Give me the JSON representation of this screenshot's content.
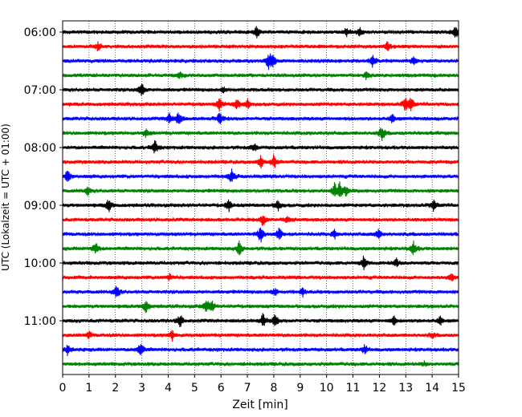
{
  "chart_data": {
    "type": "line",
    "title": "",
    "xlabel": "Zeit  [min]",
    "ylabel": "UTC (Lokalzeit = UTC + 01:00)",
    "xlim": [
      0,
      15
    ],
    "x_ticks": [
      "0",
      "1",
      "2",
      "3",
      "4",
      "5",
      "6",
      "7",
      "8",
      "9",
      "10",
      "11",
      "12",
      "13",
      "14",
      "15"
    ],
    "y_ticks": [
      "06:00",
      "07:00",
      "08:00",
      "09:00",
      "10:00",
      "11:00"
    ],
    "y_tick_rows": [
      0,
      4,
      8,
      12,
      16,
      20
    ],
    "row_interval_minutes": 15,
    "row_count": 24,
    "color_cycle": [
      "#000000",
      "#ff0000",
      "#0000ff",
      "#008000"
    ],
    "vertical_grid": "dotted",
    "rows": [
      {
        "start": "06:00",
        "events": [
          [
            7.35,
            1.0
          ],
          [
            10.75,
            0.6
          ],
          [
            11.25,
            0.6
          ],
          [
            14.9,
            1.0
          ]
        ]
      },
      {
        "start": "06:15",
        "events": [
          [
            1.35,
            0.6
          ],
          [
            12.3,
            0.7
          ]
        ]
      },
      {
        "start": "06:30",
        "events": [
          [
            7.8,
            1.0
          ],
          [
            7.95,
            1.2
          ],
          [
            11.75,
            1.0
          ],
          [
            13.3,
            0.7
          ]
        ]
      },
      {
        "start": "06:45",
        "events": [
          [
            4.45,
            0.4
          ],
          [
            11.5,
            0.5
          ]
        ]
      },
      {
        "start": "07:00",
        "events": [
          [
            3.0,
            1.0
          ],
          [
            6.1,
            0.4
          ]
        ]
      },
      {
        "start": "07:15",
        "events": [
          [
            5.95,
            0.9
          ],
          [
            6.6,
            0.7
          ],
          [
            7.0,
            0.7
          ],
          [
            13.0,
            1.2
          ],
          [
            13.2,
            1.0
          ]
        ]
      },
      {
        "start": "07:30",
        "events": [
          [
            4.05,
            0.7
          ],
          [
            4.4,
            1.0
          ],
          [
            5.95,
            1.0
          ],
          [
            12.5,
            0.6
          ]
        ]
      },
      {
        "start": "07:45",
        "events": [
          [
            3.15,
            0.6
          ],
          [
            12.1,
            1.2
          ]
        ]
      },
      {
        "start": "08:00",
        "events": [
          [
            3.5,
            1.0
          ],
          [
            7.25,
            0.6
          ]
        ]
      },
      {
        "start": "08:15",
        "events": [
          [
            7.5,
            0.9
          ],
          [
            8.0,
            1.1
          ]
        ]
      },
      {
        "start": "08:30",
        "events": [
          [
            0.2,
            1.0
          ],
          [
            6.4,
            1.0
          ]
        ]
      },
      {
        "start": "08:45",
        "events": [
          [
            0.95,
            0.6
          ],
          [
            10.3,
            1.0
          ],
          [
            10.5,
            1.3
          ],
          [
            10.75,
            0.8
          ]
        ]
      },
      {
        "start": "09:00",
        "events": [
          [
            1.75,
            1.0
          ],
          [
            6.3,
            0.8
          ],
          [
            8.15,
            0.8
          ],
          [
            14.05,
            1.0
          ]
        ]
      },
      {
        "start": "09:15",
        "events": [
          [
            7.6,
            1.0
          ],
          [
            8.5,
            0.5
          ]
        ]
      },
      {
        "start": "09:30",
        "events": [
          [
            7.5,
            1.3
          ],
          [
            8.2,
            1.0
          ],
          [
            10.3,
            0.6
          ],
          [
            11.95,
            0.8
          ]
        ]
      },
      {
        "start": "09:45",
        "events": [
          [
            1.25,
            1.0
          ],
          [
            6.7,
            1.1
          ],
          [
            13.3,
            1.0
          ]
        ]
      },
      {
        "start": "10:00",
        "events": [
          [
            11.4,
            0.9
          ],
          [
            12.65,
            0.6
          ]
        ]
      },
      {
        "start": "10:15",
        "events": [
          [
            4.05,
            0.5
          ],
          [
            14.75,
            0.6
          ]
        ]
      },
      {
        "start": "10:30",
        "events": [
          [
            2.05,
            1.0
          ],
          [
            8.05,
            0.6
          ],
          [
            9.1,
            0.6
          ]
        ]
      },
      {
        "start": "10:45",
        "events": [
          [
            3.15,
            1.0
          ],
          [
            5.45,
            1.0
          ],
          [
            5.65,
            0.7
          ]
        ]
      },
      {
        "start": "11:00",
        "events": [
          [
            4.45,
            1.0
          ],
          [
            7.6,
            1.1
          ],
          [
            8.05,
            0.9
          ],
          [
            12.55,
            0.7
          ],
          [
            14.3,
            0.6
          ]
        ]
      },
      {
        "start": "11:15",
        "events": [
          [
            1.0,
            0.5
          ],
          [
            4.15,
            0.7
          ],
          [
            14.0,
            0.4
          ]
        ]
      },
      {
        "start": "11:30",
        "events": [
          [
            0.2,
            0.8
          ],
          [
            2.95,
            1.2
          ],
          [
            11.45,
            0.7
          ]
        ]
      },
      {
        "start": "11:45",
        "events": [
          [
            13.7,
            0.3
          ]
        ]
      }
    ]
  }
}
